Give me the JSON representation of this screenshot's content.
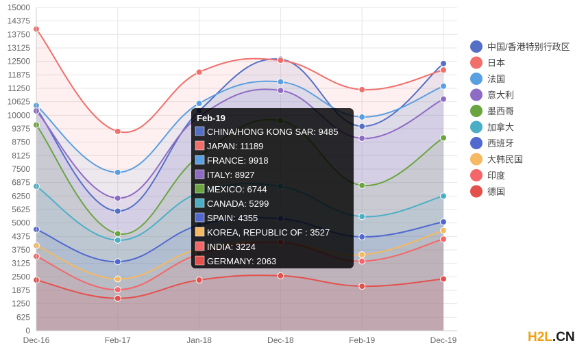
{
  "chart_data": {
    "type": "area",
    "categories": [
      "Dec-16",
      "Feb-17",
      "Jan-18",
      "Dec-18",
      "Feb-19",
      "Dec-19"
    ],
    "ylim": [
      0,
      15000
    ],
    "y_ticks": [
      0,
      625,
      1250,
      1875,
      2500,
      3125,
      3750,
      4375,
      5000,
      5625,
      6250,
      6875,
      7500,
      8125,
      8750,
      9375,
      10000,
      10625,
      11250,
      11875,
      12500,
      13125,
      13750,
      14375,
      15000
    ],
    "grid": true,
    "legend_position": "right",
    "series": [
      {
        "name": "中国/香港特别行政区",
        "tooltip_name": "CHINA/HONG KONG SAR",
        "color": "#5470c6",
        "values": [
          10300,
          5550,
          10200,
          12600,
          9485,
          12400
        ]
      },
      {
        "name": "日本",
        "tooltip_name": "JAPAN",
        "color": "#f16f6b",
        "values": [
          14000,
          9250,
          12000,
          12550,
          11189,
          12100
        ]
      },
      {
        "name": "法国",
        "tooltip_name": "FRANCE",
        "color": "#5a9fe0",
        "values": [
          10450,
          7350,
          10550,
          11550,
          9918,
          11350
        ]
      },
      {
        "name": "意大利",
        "tooltip_name": "ITALY",
        "color": "#8e6bc4",
        "values": [
          10200,
          6150,
          9950,
          11150,
          8927,
          10750
        ]
      },
      {
        "name": "墨西哥",
        "tooltip_name": "MEXICO",
        "color": "#6aa53f",
        "values": [
          9550,
          4500,
          8100,
          9750,
          6744,
          8950
        ]
      },
      {
        "name": "加拿大",
        "tooltip_name": "CANADA",
        "color": "#4aafc6",
        "values": [
          6700,
          4200,
          6400,
          6700,
          5299,
          6250
        ]
      },
      {
        "name": "西班牙",
        "tooltip_name": "SPAIN",
        "color": "#5169cf",
        "values": [
          4700,
          3200,
          4900,
          5200,
          4355,
          5050
        ]
      },
      {
        "name": "大韩民国",
        "tooltip_name": "KOREA, REPUBLIC OF :",
        "color": "#f4b961",
        "values": [
          3950,
          2400,
          3800,
          4100,
          3527,
          4650
        ]
      },
      {
        "name": "印度",
        "tooltip_name": "INDIA",
        "color": "#f4666a",
        "values": [
          3450,
          1900,
          3550,
          4100,
          3224,
          4250
        ]
      },
      {
        "name": "德国",
        "tooltip_name": "GERMANY",
        "color": "#e4504c",
        "values": [
          2350,
          1500,
          2350,
          2550,
          2063,
          2400
        ]
      }
    ],
    "tooltip": {
      "title": "Feb-19",
      "category_index": 4
    }
  },
  "watermark": {
    "part1": "H2L",
    "part2": ".CN"
  }
}
